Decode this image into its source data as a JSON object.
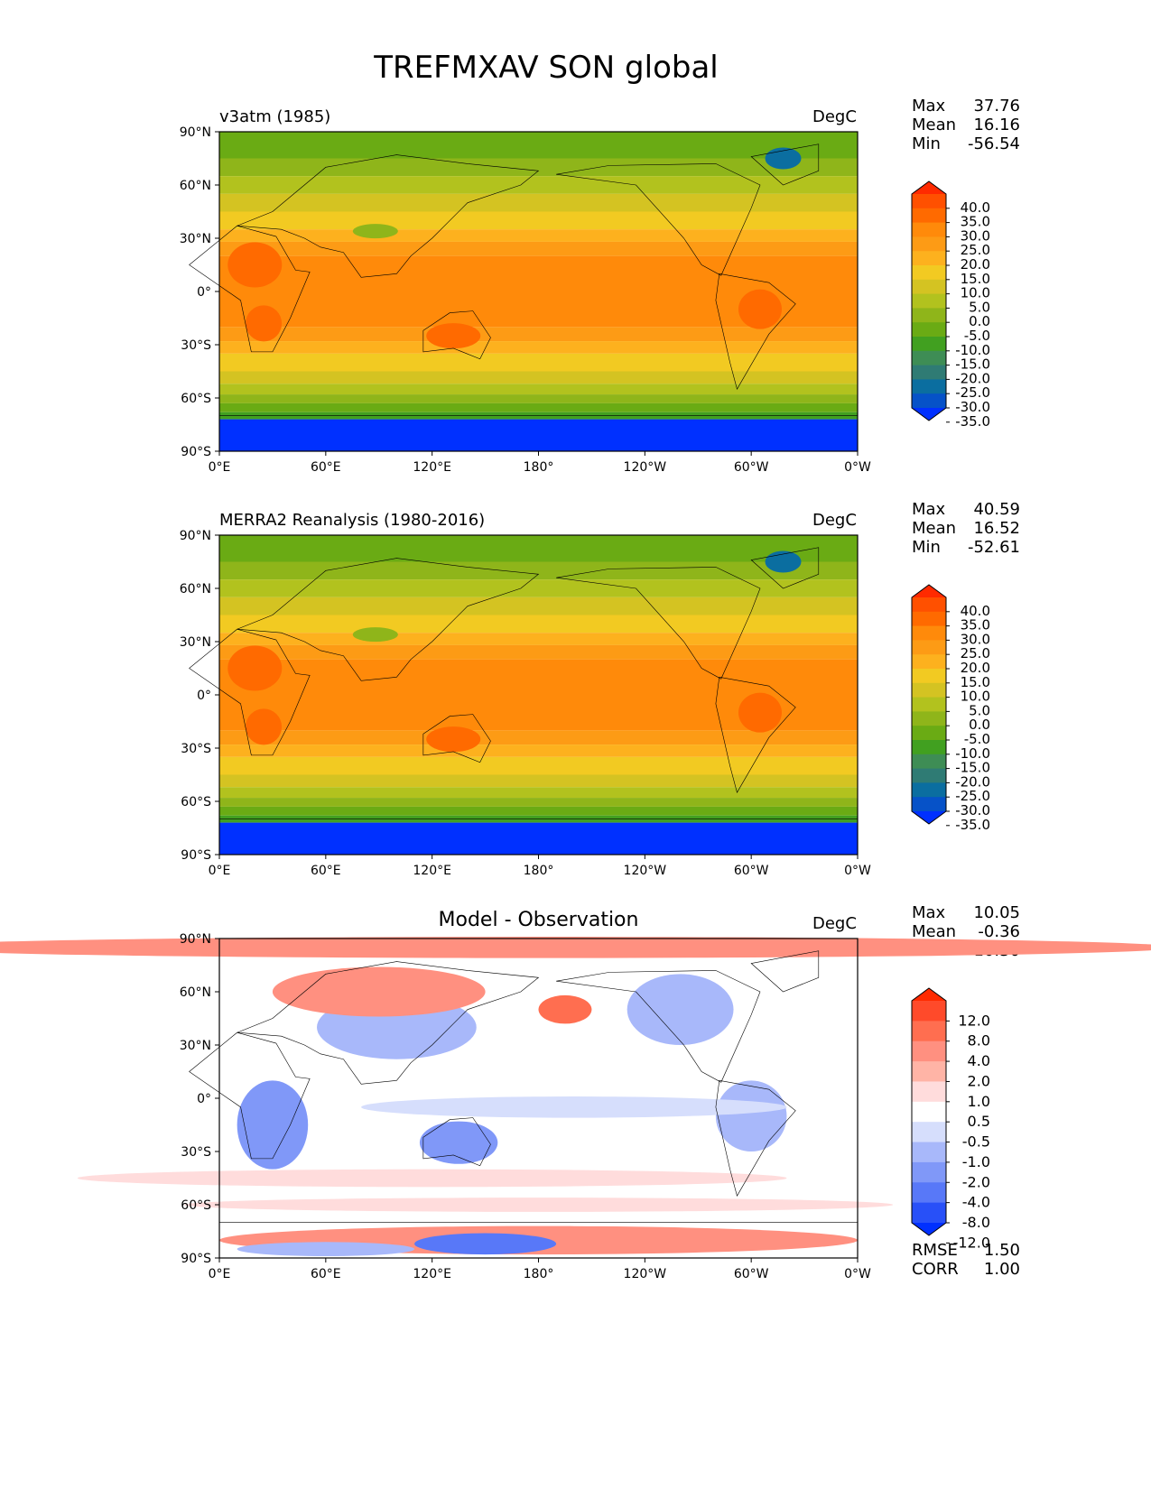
{
  "figure_title": "TREFMXAV SON global",
  "lat_ticks": [
    "90°N",
    "60°N",
    "30°N",
    "0°",
    "30°S",
    "60°S",
    "90°S"
  ],
  "lon_ticks": [
    "0°E",
    "60°E",
    "120°E",
    "180°",
    "120°W",
    "60°W",
    "0°W"
  ],
  "panels": [
    {
      "title": "v3atm (1985)",
      "units": "DegC",
      "stats": {
        "max_label": "Max",
        "max": "37.76",
        "mean_label": "Mean",
        "mean": "16.16",
        "min_label": "Min",
        "min": "-56.54"
      },
      "colorbar": "abs"
    },
    {
      "title": "MERRA2 Reanalysis (1980-2016)",
      "units": "DegC",
      "stats": {
        "max_label": "Max",
        "max": "40.59",
        "mean_label": "Mean",
        "mean": "16.52",
        "min_label": "Min",
        "min": "-52.61"
      },
      "colorbar": "abs"
    },
    {
      "title": "Model - Observation",
      "units": "DegC",
      "stats": {
        "max_label": "Max",
        "max": "10.05",
        "mean_label": "Mean",
        "mean": "-0.36",
        "min_label": "Min",
        "min": "-10.30"
      },
      "colorbar": "diff",
      "metrics": {
        "rmse_label": "RMSE",
        "rmse": "1.50",
        "corr_label": "CORR",
        "corr": "1.00"
      }
    }
  ],
  "colorbars": {
    "abs": {
      "levels": [
        "40.0",
        "35.0",
        "30.0",
        "25.0",
        "20.0",
        "15.0",
        "10.0",
        "5.0",
        "0.0",
        "-5.0",
        "-10.0",
        "-15.0",
        "-20.0",
        "-25.0",
        "-30.0",
        "-35.0"
      ],
      "colors": [
        "#ff2a00",
        "#ff5000",
        "#ff6a00",
        "#ff8a0a",
        "#fd9b15",
        "#fdb11e",
        "#f2ca22",
        "#d4c322",
        "#b2c21e",
        "#8fb51a",
        "#6aab14",
        "#41a020",
        "#3e8d55",
        "#2f7b74",
        "#0b6ea0",
        "#0652c8",
        "#0030ff"
      ]
    },
    "diff": {
      "levels": [
        "12.0",
        "8.0",
        "4.0",
        "2.0",
        "1.0",
        "0.5",
        "-0.5",
        "-1.0",
        "-2.0",
        "-4.0",
        "-8.0",
        "-12.0"
      ],
      "colors": [
        "#ff2a00",
        "#ff4a2a",
        "#ff6e50",
        "#ff9080",
        "#ffb4a6",
        "#ffdcdc",
        "#ffffff",
        "#d6defc",
        "#a8b8fa",
        "#8098f8",
        "#5878f8",
        "#2850f8",
        "#0030ff"
      ]
    }
  }
}
